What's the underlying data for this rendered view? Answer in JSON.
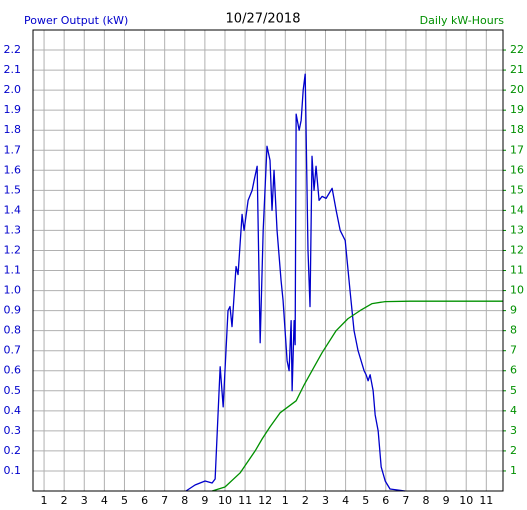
{
  "chart_data": {
    "type": "line",
    "title": "10/27/2018",
    "y_label": "Power Output (kW)",
    "y2_label": "Daily kW-Hours",
    "grid": true,
    "xlim": [
      0.45,
      23.83
    ],
    "xticks": [
      1,
      2,
      3,
      4,
      5,
      6,
      7,
      8,
      9,
      10,
      11,
      12,
      {
        "value": 13,
        "label": "1"
      },
      {
        "value": 14,
        "label": "2"
      },
      {
        "value": 15,
        "label": "3"
      },
      {
        "value": 16,
        "label": "4"
      },
      {
        "value": 17,
        "label": "5"
      },
      {
        "value": 18,
        "label": "6"
      },
      {
        "value": 19,
        "label": "7"
      },
      {
        "value": 20,
        "label": "8"
      },
      {
        "value": 21,
        "label": "9"
      },
      {
        "value": 22,
        "label": "10"
      },
      {
        "value": 23,
        "label": "11"
      }
    ],
    "ylim": [
      0,
      2.3
    ],
    "yticks": [
      0.1,
      0.2,
      0.3,
      0.4,
      0.5,
      0.6,
      0.7,
      0.8,
      0.9,
      {
        "value": 1.0,
        "label": "1.0"
      },
      1.1,
      1.2,
      1.3,
      1.4,
      1.5,
      1.6,
      1.7,
      1.8,
      1.9,
      {
        "value": 2.0,
        "label": "2.0"
      },
      2.1,
      2.2
    ],
    "y2lim": [
      0,
      23
    ],
    "y2ticks": [
      1,
      2,
      3,
      4,
      5,
      6,
      7,
      8,
      9,
      10,
      11,
      12,
      13,
      14,
      15,
      16,
      17,
      18,
      19,
      20,
      21,
      22
    ],
    "series": [
      {
        "name": "Power Output (kW)",
        "color": "#0000cc",
        "x": [
          8.06,
          8.51,
          9.01,
          9.36,
          9.51,
          9.76,
          9.91,
          10.15,
          10.25,
          10.35,
          10.55,
          10.65,
          10.85,
          10.95,
          11.15,
          11.35,
          11.45,
          11.6,
          11.75,
          11.9,
          12.09,
          12.24,
          12.34,
          12.44,
          12.59,
          12.79,
          12.89,
          13.09,
          13.19,
          13.29,
          13.34,
          13.44,
          13.49,
          13.54,
          13.69,
          13.79,
          13.89,
          13.99,
          14.13,
          14.23,
          14.33,
          14.43,
          14.53,
          14.68,
          14.83,
          15.03,
          15.33,
          15.53,
          15.73,
          15.98,
          16.22,
          16.42,
          16.62,
          16.92,
          17.02,
          17.12,
          17.22,
          17.37,
          17.47,
          17.62,
          17.77,
          17.97,
          18.21,
          18.96
        ],
        "values": [
          0,
          0.03,
          0.05,
          0.04,
          0.06,
          0.62,
          0.42,
          0.9,
          0.92,
          0.82,
          1.12,
          1.08,
          1.38,
          1.3,
          1.45,
          1.5,
          1.55,
          1.62,
          0.74,
          1.3,
          1.72,
          1.65,
          1.4,
          1.6,
          1.3,
          1.05,
          0.95,
          0.65,
          0.6,
          0.85,
          0.5,
          0.85,
          0.73,
          1.88,
          1.8,
          1.85,
          2.0,
          2.08,
          1.2,
          0.92,
          1.67,
          1.5,
          1.62,
          1.45,
          1.47,
          1.46,
          1.51,
          1.4,
          1.3,
          1.25,
          1.0,
          0.8,
          0.7,
          0.6,
          0.58,
          0.55,
          0.58,
          0.5,
          0.38,
          0.3,
          0.12,
          0.05,
          0.01,
          0
        ]
      },
      {
        "name": "Daily kW-Hours",
        "color": "#009000",
        "axis": "y2",
        "x": [
          9.36,
          10.0,
          10.75,
          11.5,
          11.85,
          12.24,
          12.74,
          13.14,
          13.54,
          13.94,
          14.33,
          14.83,
          15.53,
          16.12,
          16.72,
          17.32,
          17.97,
          19.21,
          23.83
        ],
        "values": [
          0,
          0.2,
          0.9,
          2.0,
          2.6,
          3.2,
          3.9,
          4.2,
          4.5,
          5.3,
          6.0,
          6.9,
          8.0,
          8.6,
          9.0,
          9.35,
          9.45,
          9.47,
          9.47
        ]
      }
    ]
  }
}
